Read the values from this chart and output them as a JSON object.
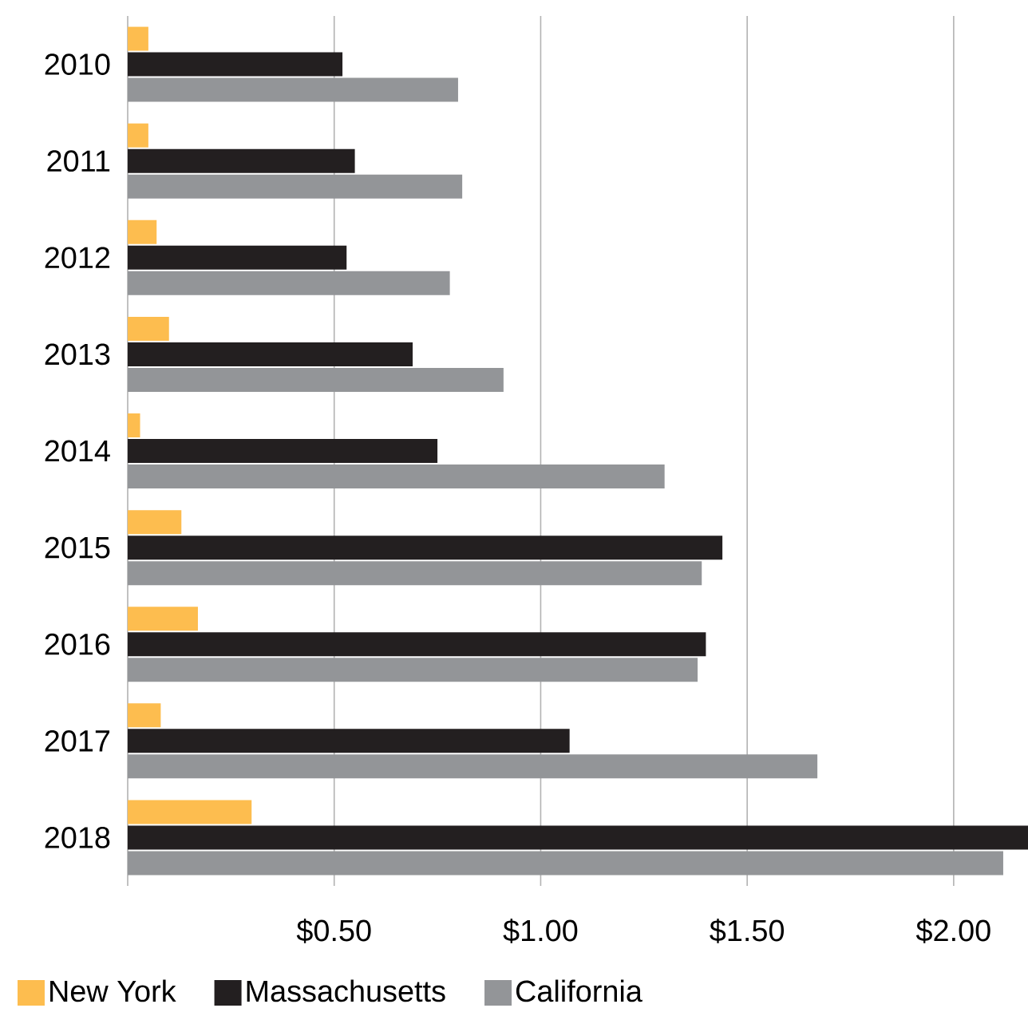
{
  "chart_data": {
    "type": "bar",
    "orientation": "horizontal",
    "categories": [
      "2010",
      "2011",
      "2012",
      "2013",
      "2014",
      "2015",
      "2016",
      "2017",
      "2018"
    ],
    "series": [
      {
        "name": "New York",
        "color": "#fdbd4f",
        "values": [
          0.05,
          0.05,
          0.07,
          0.1,
          0.03,
          0.13,
          0.17,
          0.08,
          0.3
        ]
      },
      {
        "name": "Massachusetts",
        "color": "#231f20",
        "values": [
          0.52,
          0.55,
          0.53,
          0.69,
          0.75,
          1.44,
          1.4,
          1.07,
          2.18
        ]
      },
      {
        "name": "California",
        "color": "#939598",
        "values": [
          0.8,
          0.81,
          0.78,
          0.91,
          1.3,
          1.39,
          1.38,
          1.67,
          2.12
        ]
      }
    ],
    "xlim": [
      0,
      2.18
    ],
    "xticks": [
      {
        "value": 0,
        "label": null
      },
      {
        "value": 0.5,
        "label": "$0.50"
      },
      {
        "value": 1,
        "label": "$1.00"
      },
      {
        "value": 1.5,
        "label": "$1.50"
      },
      {
        "value": 2,
        "label": "$2.00"
      }
    ],
    "grid": "x",
    "legend": "bottom"
  }
}
